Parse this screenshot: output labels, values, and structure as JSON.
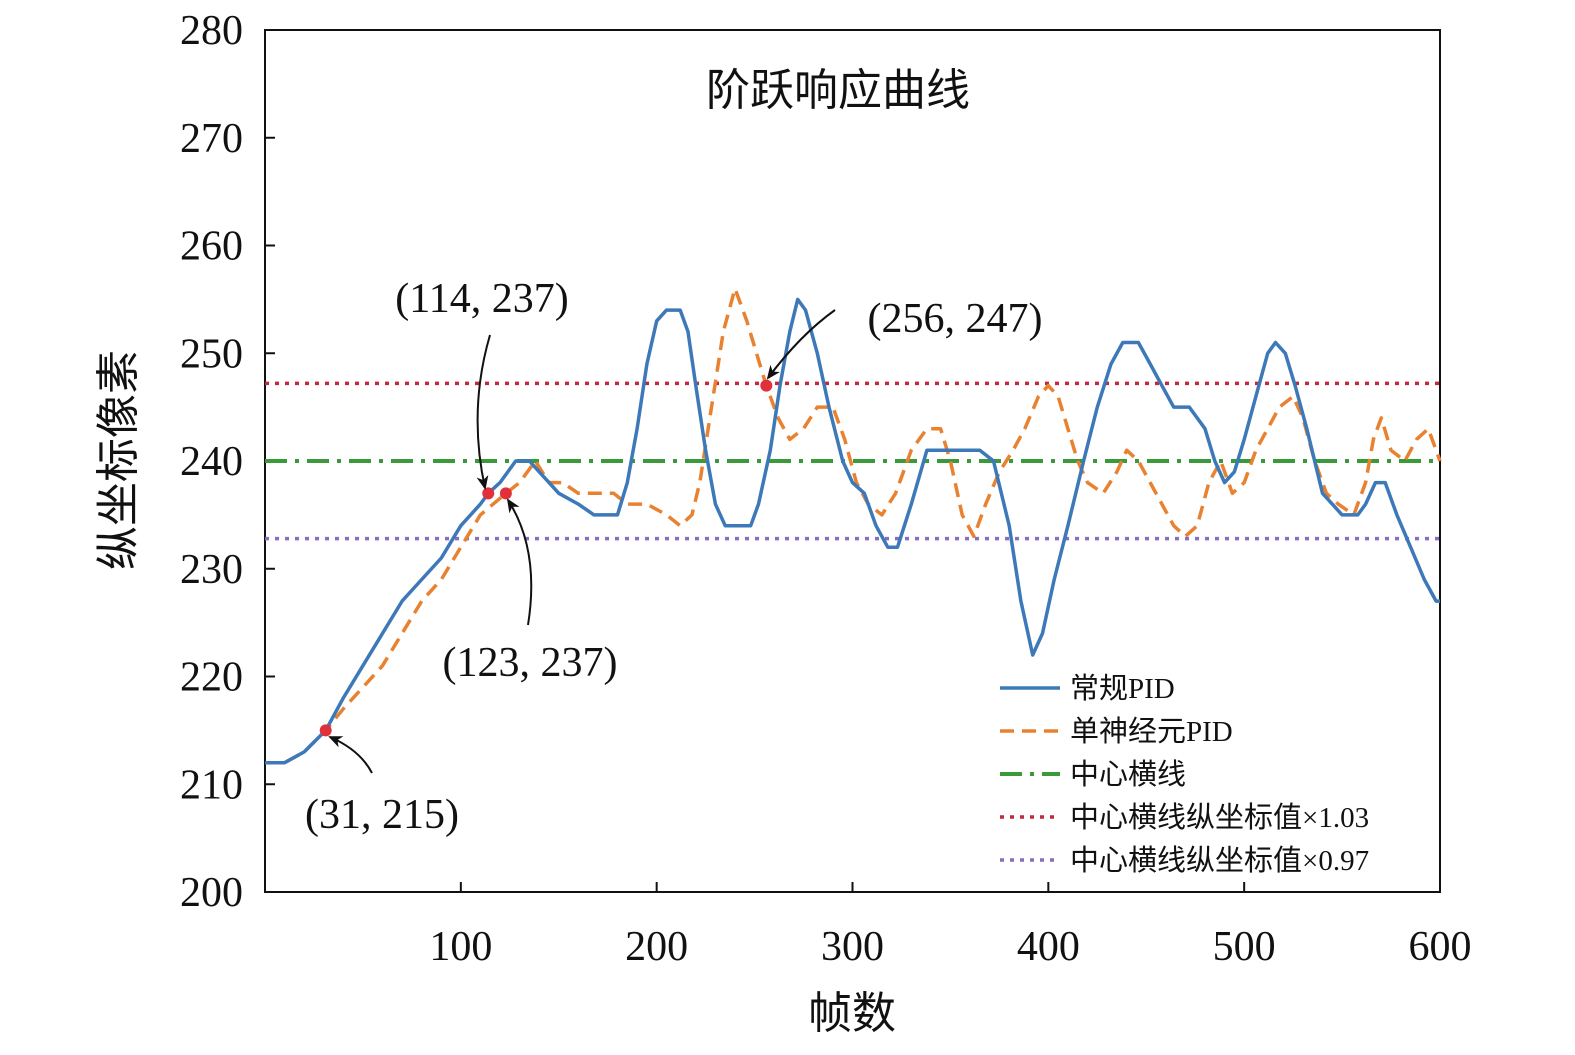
{
  "chart_data": {
    "type": "line",
    "title": "阶跃响应曲线",
    "xlabel": "帧数",
    "ylabel": "纵坐标像素",
    "xlim": [
      0,
      600
    ],
    "ylim": [
      200,
      280
    ],
    "x_ticks": [
      100,
      200,
      300,
      400,
      500,
      600
    ],
    "y_ticks": [
      200,
      210,
      220,
      230,
      240,
      250,
      260,
      270,
      280
    ],
    "grid": false,
    "legend_position": "bottom-right",
    "series": [
      {
        "name": "常规PID",
        "color": "#3d78b8",
        "style": "solid",
        "points": [
          [
            0,
            212
          ],
          [
            10,
            212
          ],
          [
            20,
            213
          ],
          [
            31,
            215
          ],
          [
            40,
            218
          ],
          [
            50,
            221
          ],
          [
            60,
            224
          ],
          [
            70,
            227
          ],
          [
            80,
            229
          ],
          [
            90,
            231
          ],
          [
            100,
            234
          ],
          [
            110,
            236
          ],
          [
            114,
            237
          ],
          [
            120,
            238
          ],
          [
            128,
            240
          ],
          [
            135,
            240
          ],
          [
            140,
            239
          ],
          [
            150,
            237
          ],
          [
            160,
            236
          ],
          [
            168,
            235
          ],
          [
            180,
            235
          ],
          [
            185,
            238
          ],
          [
            190,
            243
          ],
          [
            195,
            249
          ],
          [
            200,
            253
          ],
          [
            205,
            254
          ],
          [
            212,
            254
          ],
          [
            216,
            252
          ],
          [
            220,
            247
          ],
          [
            225,
            241
          ],
          [
            230,
            236
          ],
          [
            235,
            234
          ],
          [
            248,
            234
          ],
          [
            252,
            236
          ],
          [
            258,
            241
          ],
          [
            263,
            247
          ],
          [
            268,
            252
          ],
          [
            272,
            255
          ],
          [
            276,
            254
          ],
          [
            282,
            250
          ],
          [
            288,
            245
          ],
          [
            295,
            240
          ],
          [
            300,
            238
          ],
          [
            306,
            237
          ],
          [
            312,
            234
          ],
          [
            318,
            232
          ],
          [
            323,
            232
          ],
          [
            330,
            236
          ],
          [
            338,
            241
          ],
          [
            350,
            241
          ],
          [
            365,
            241
          ],
          [
            372,
            240
          ],
          [
            380,
            234
          ],
          [
            386,
            227
          ],
          [
            392,
            222
          ],
          [
            397,
            224
          ],
          [
            403,
            229
          ],
          [
            410,
            234
          ],
          [
            418,
            240
          ],
          [
            425,
            245
          ],
          [
            432,
            249
          ],
          [
            438,
            251
          ],
          [
            446,
            251
          ],
          [
            452,
            249
          ],
          [
            458,
            247
          ],
          [
            464,
            245
          ],
          [
            472,
            245
          ],
          [
            480,
            243
          ],
          [
            485,
            240
          ],
          [
            490,
            238
          ],
          [
            495,
            239
          ],
          [
            500,
            242
          ],
          [
            506,
            246
          ],
          [
            512,
            250
          ],
          [
            516,
            251
          ],
          [
            521,
            250
          ],
          [
            526,
            247
          ],
          [
            532,
            243
          ],
          [
            540,
            237
          ],
          [
            550,
            235
          ],
          [
            558,
            235
          ],
          [
            562,
            236
          ],
          [
            567,
            238
          ],
          [
            572,
            238
          ],
          [
            578,
            235
          ],
          [
            585,
            232
          ],
          [
            592,
            229
          ],
          [
            598,
            227
          ],
          [
            600,
            227
          ]
        ]
      },
      {
        "name": "单神经元PID",
        "color": "#e98230",
        "style": "dashed",
        "points": [
          [
            0,
            212
          ],
          [
            10,
            212
          ],
          [
            20,
            213
          ],
          [
            31,
            215
          ],
          [
            40,
            217
          ],
          [
            50,
            219
          ],
          [
            60,
            221
          ],
          [
            70,
            224
          ],
          [
            80,
            227
          ],
          [
            90,
            229
          ],
          [
            100,
            232
          ],
          [
            110,
            235
          ],
          [
            123,
            237
          ],
          [
            130,
            238
          ],
          [
            138,
            240
          ],
          [
            145,
            238
          ],
          [
            152,
            238
          ],
          [
            160,
            237
          ],
          [
            170,
            237
          ],
          [
            178,
            237
          ],
          [
            185,
            236
          ],
          [
            195,
            236
          ],
          [
            205,
            235
          ],
          [
            212,
            234
          ],
          [
            218,
            235
          ],
          [
            222,
            238
          ],
          [
            228,
            245
          ],
          [
            234,
            252
          ],
          [
            240,
            256
          ],
          [
            246,
            253
          ],
          [
            251,
            250
          ],
          [
            256,
            247
          ],
          [
            262,
            244
          ],
          [
            268,
            242
          ],
          [
            275,
            243
          ],
          [
            282,
            245
          ],
          [
            290,
            245
          ],
          [
            296,
            242
          ],
          [
            302,
            238
          ],
          [
            308,
            236
          ],
          [
            315,
            235
          ],
          [
            322,
            237
          ],
          [
            330,
            241
          ],
          [
            338,
            243
          ],
          [
            345,
            243
          ],
          [
            350,
            240
          ],
          [
            356,
            235
          ],
          [
            362,
            233
          ],
          [
            368,
            236
          ],
          [
            375,
            239
          ],
          [
            382,
            241
          ],
          [
            388,
            243
          ],
          [
            395,
            246
          ],
          [
            400,
            247
          ],
          [
            405,
            246
          ],
          [
            410,
            243
          ],
          [
            415,
            240
          ],
          [
            420,
            238
          ],
          [
            428,
            237
          ],
          [
            435,
            239
          ],
          [
            440,
            241
          ],
          [
            446,
            240
          ],
          [
            452,
            238
          ],
          [
            458,
            236
          ],
          [
            464,
            234
          ],
          [
            470,
            233
          ],
          [
            476,
            234
          ],
          [
            482,
            238
          ],
          [
            488,
            240
          ],
          [
            494,
            237
          ],
          [
            500,
            238
          ],
          [
            506,
            241
          ],
          [
            512,
            243
          ],
          [
            518,
            245
          ],
          [
            525,
            246
          ],
          [
            530,
            244
          ],
          [
            536,
            240
          ],
          [
            542,
            237
          ],
          [
            548,
            236
          ],
          [
            556,
            235
          ],
          [
            562,
            238
          ],
          [
            566,
            242
          ],
          [
            570,
            244
          ],
          [
            575,
            241
          ],
          [
            582,
            240
          ],
          [
            588,
            242
          ],
          [
            594,
            243
          ],
          [
            600,
            240
          ]
        ]
      },
      {
        "name": "中心横线",
        "color": "#3a9a3a",
        "style": "dashdot",
        "points": [
          [
            0,
            240
          ],
          [
            600,
            240
          ]
        ]
      },
      {
        "name": "中心横线纵坐标值×1.03",
        "color": "#c12a3d",
        "style": "dotted",
        "points": [
          [
            0,
            247.2
          ],
          [
            600,
            247.2
          ]
        ]
      },
      {
        "name": "中心横线纵坐标值×0.97",
        "color": "#8a6cc0",
        "style": "dotted",
        "points": [
          [
            0,
            232.8
          ],
          [
            600,
            232.8
          ]
        ]
      }
    ],
    "annotations": [
      {
        "label": "(114, 237)",
        "x": 114,
        "y": 237
      },
      {
        "label": "(123, 237)",
        "x": 123,
        "y": 237
      },
      {
        "label": "(256, 247)",
        "x": 256,
        "y": 247
      },
      {
        "label": "(31, 215)",
        "x": 31,
        "y": 215
      }
    ],
    "marker_color": "#e0303a"
  }
}
